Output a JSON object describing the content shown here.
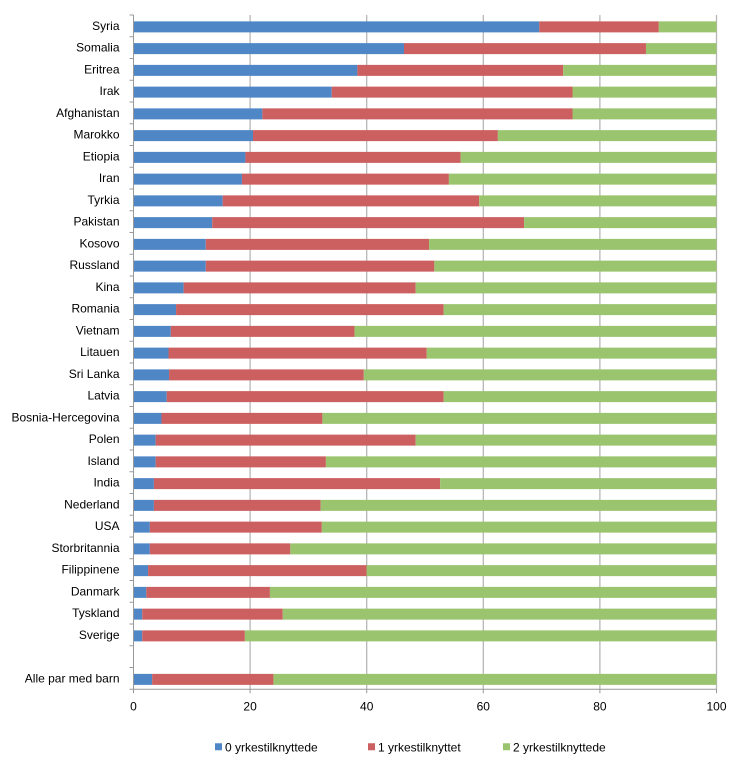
{
  "chart_data": {
    "type": "bar",
    "orientation": "horizontal",
    "stacked": true,
    "title": "",
    "xlabel": "",
    "ylabel": "",
    "xlim": [
      0,
      100
    ],
    "xticks": [
      0,
      20,
      40,
      60,
      80,
      100
    ],
    "grid": true,
    "legend_position": "bottom",
    "categories": [
      "Syria",
      "Somalia",
      "Eritrea",
      "Irak",
      "Afghanistan",
      "Marokko",
      "Etiopia",
      "Iran",
      "Tyrkia",
      "Pakistan",
      "Kosovo",
      "Russland",
      "Kina",
      "Romania",
      "Vietnam",
      "Litauen",
      "Sri Lanka",
      "Latvia",
      "Bosnia-Hercegovina",
      "Polen",
      "Island",
      "India",
      "Nederland",
      "USA",
      "Storbritannia",
      "Filippinene",
      "Danmark",
      "Tyskland",
      "Sverige",
      "",
      "Alle par med barn"
    ],
    "series": [
      {
        "name": "0 yrkestilknyttede",
        "color": "#4f86c6",
        "values": [
          69.6,
          46.4,
          38.4,
          34.0,
          22.1,
          20.5,
          19.2,
          18.6,
          15.3,
          13.5,
          12.4,
          12.4,
          8.6,
          7.3,
          6.4,
          6.0,
          6.1,
          5.7,
          4.8,
          3.8,
          3.8,
          3.5,
          3.5,
          2.8,
          2.8,
          2.5,
          2.2,
          1.5,
          1.5,
          null,
          3.2
        ]
      },
      {
        "name": "1 yrkestilknyttet",
        "color": "#cc5f5f",
        "values": [
          20.5,
          41.5,
          35.3,
          41.3,
          53.2,
          42.0,
          36.9,
          35.5,
          44.0,
          53.5,
          38.3,
          39.2,
          39.8,
          45.9,
          31.5,
          44.3,
          33.4,
          47.5,
          27.6,
          44.6,
          29.2,
          49.1,
          28.6,
          29.5,
          24.1,
          37.5,
          21.2,
          24.1,
          17.6,
          null,
          20.8
        ]
      },
      {
        "name": "2 yrkestilknyttede",
        "color": "#9bc46e",
        "values": [
          9.9,
          12.1,
          26.3,
          24.7,
          24.7,
          37.5,
          43.9,
          45.9,
          40.7,
          33.0,
          49.3,
          48.4,
          51.6,
          46.8,
          62.1,
          49.7,
          60.5,
          46.8,
          67.6,
          51.6,
          67.0,
          47.4,
          67.9,
          67.7,
          73.1,
          60.0,
          76.6,
          74.4,
          80.9,
          null,
          76.0
        ]
      }
    ]
  }
}
